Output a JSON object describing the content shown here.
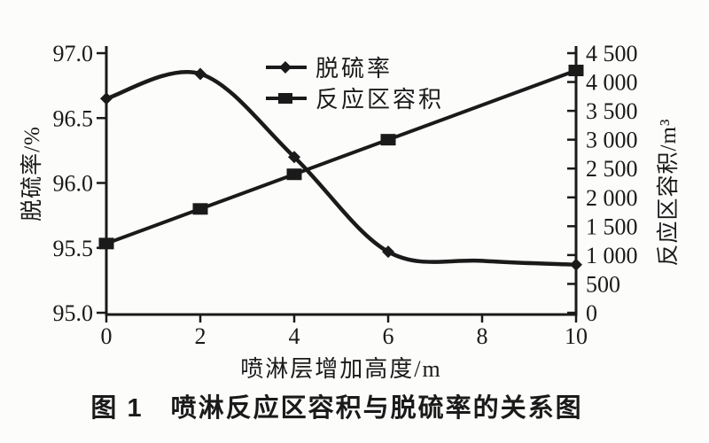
{
  "figure": {
    "caption": "图 1　喷淋反应区容积与脱硫率的关系图"
  },
  "legend": {
    "items": [
      {
        "label": "脱硫率",
        "marker": "diamond"
      },
      {
        "label": "反应区容积",
        "marker": "square"
      }
    ]
  },
  "chart_data": {
    "type": "line",
    "title": "",
    "xlabel": "喷淋层增加高度/m",
    "grid": false,
    "legend_position": "top-center-inside",
    "x_axis": {
      "ticks": [
        0,
        2,
        4,
        6,
        8,
        10
      ],
      "range": [
        0,
        10
      ]
    },
    "left_axis": {
      "label": "脱硫率/%",
      "ticks": [
        "95.0",
        "95.5",
        "96.0",
        "96.5",
        "97.0"
      ],
      "range": [
        95.0,
        97.0
      ]
    },
    "right_axis": {
      "label": "反应区容积/m³",
      "ticks": [
        "0",
        "500",
        "1 000",
        "1 500",
        "2 000",
        "2 500",
        "3 000",
        "3 500",
        "4 000",
        "4 500"
      ],
      "range": [
        0,
        4500
      ]
    },
    "series": [
      {
        "name": "脱硫率",
        "axis": "left",
        "marker": "diamond",
        "smooth": true,
        "x": [
          0,
          2,
          4,
          6,
          10
        ],
        "values": [
          96.65,
          96.84,
          96.2,
          95.47,
          95.37
        ],
        "curve_points": {
          "x": [
            0,
            2,
            4,
            6,
            8,
            10
          ],
          "values": [
            96.65,
            96.84,
            96.2,
            95.47,
            95.4,
            95.37
          ]
        }
      },
      {
        "name": "反应区容积",
        "axis": "right",
        "marker": "square",
        "smooth": false,
        "x": [
          0,
          2,
          4,
          6,
          10
        ],
        "values": [
          1200,
          1800,
          2400,
          3000,
          4200
        ]
      }
    ],
    "line_color": "#1a1a1a"
  }
}
